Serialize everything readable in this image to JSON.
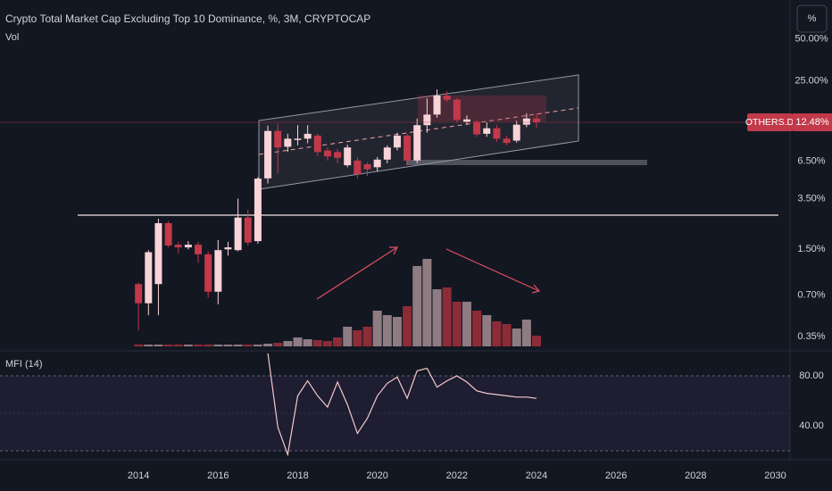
{
  "chart_data": [
    {
      "type": "candlestick",
      "title": "Crypto Total Market Cap Excluding Top 10 Dominance, %, 3M, CRYPTOCAP",
      "subtitle": "Vol",
      "unit_button": "%",
      "x": [
        2014,
        2014.25,
        2014.5,
        2014.75,
        2015,
        2015.25,
        2015.5,
        2015.75,
        2016,
        2016.25,
        2016.5,
        2016.75,
        2017,
        2017.25,
        2017.5,
        2017.75,
        2018,
        2018.25,
        2018.5,
        2018.75,
        2019,
        2019.25,
        2019.5,
        2019.75,
        2020,
        2020.25,
        2020.5,
        2020.75,
        2021,
        2021.25,
        2021.5,
        2021.75,
        2022,
        2022.25,
        2022.5,
        2022.75,
        2023,
        2023.25,
        2023.5,
        2023.75,
        2024
      ],
      "open": [
        0.84,
        0.61,
        0.84,
        2.32,
        1.62,
        1.55,
        1.62,
        1.38,
        0.74,
        1.5,
        1.48,
        2.55,
        1.72,
        4.9,
        10.8,
        8.3,
        9.3,
        9.5,
        10.0,
        7.8,
        7.6,
        6.1,
        6.6,
        6.2,
        5.9,
        6.7,
        8.2,
        10.0,
        6.6,
        11.9,
        14.2,
        19.5,
        18.2,
        12.6,
        12.6,
        10.3,
        11.3,
        9.5,
        9.2,
        12.0,
        13.3
      ],
      "high": [
        0.86,
        1.48,
        2.5,
        2.4,
        1.7,
        1.72,
        1.7,
        1.45,
        1.75,
        1.7,
        3.5,
        2.9,
        5.0,
        11.8,
        12.2,
        10.3,
        11.9,
        11.9,
        10.3,
        8.2,
        8.0,
        8.6,
        7.0,
        6.4,
        7.0,
        8.5,
        10.5,
        10.3,
        13.3,
        18.6,
        21.6,
        21.0,
        18.6,
        14.0,
        13.0,
        12.5,
        11.9,
        10.0,
        12.8,
        14.5,
        14.3
      ],
      "low": [
        0.39,
        0.5,
        0.5,
        1.55,
        1.4,
        1.5,
        1.2,
        0.67,
        0.6,
        1.35,
        1.45,
        1.6,
        1.65,
        4.5,
        5.3,
        7.6,
        8.5,
        8.8,
        7.1,
        6.6,
        6.3,
        5.9,
        4.9,
        5.1,
        5.5,
        6.3,
        7.8,
        6.1,
        6.3,
        10.5,
        13.5,
        17.5,
        12.5,
        12.0,
        9.8,
        9.8,
        9.0,
        8.5,
        8.9,
        11.5,
        11.3
      ],
      "close": [
        0.61,
        1.43,
        2.32,
        1.6,
        1.55,
        1.62,
        1.38,
        0.74,
        1.48,
        1.55,
        2.55,
        1.68,
        4.88,
        10.8,
        8.2,
        9.5,
        9.5,
        10.3,
        7.6,
        7.07,
        6.9,
        8.2,
        5.25,
        5.7,
        6.7,
        8.2,
        10.0,
        6.6,
        11.9,
        14.2,
        19.5,
        18.2,
        13.0,
        13.1,
        10.2,
        11.3,
        9.5,
        8.85,
        12.0,
        13.3,
        12.48
      ],
      "volume": [
        2,
        2,
        2,
        2,
        2,
        2,
        2,
        2,
        2,
        2,
        2,
        2,
        2,
        3,
        4,
        6,
        10,
        8,
        7,
        6,
        10,
        22,
        18,
        22,
        40,
        35,
        33,
        45,
        90,
        98,
        64,
        66,
        50,
        50,
        40,
        35,
        28,
        25,
        20,
        30,
        12
      ],
      "up_color": "#f8d3d7",
      "down_color": "#c2394a",
      "volume_up_color": "#8e7c82",
      "volume_down_color": "#8c2c37",
      "log": true,
      "ylim": [
        0.28,
        96
      ],
      "yticks": [
        {
          "value": 0.35,
          "label": "0.35%"
        },
        {
          "value": 0.7,
          "label": "0.70%"
        },
        {
          "value": 1.5,
          "label": "1.50%"
        },
        {
          "value": 3.5,
          "label": "3.50%"
        },
        {
          "value": 6.5,
          "label": "6.50%"
        },
        {
          "value": 25,
          "label": "25.00%"
        },
        {
          "value": 50,
          "label": "50.00%"
        }
      ],
      "xlim": [
        2010.52,
        2030.37
      ],
      "price_tag": {
        "symbol": "OTHERS.D",
        "value": 12.48,
        "label": "12.48%"
      }
    },
    {
      "type": "line",
      "title": "MFI (14)",
      "x": [
        2017.25,
        2017.5,
        2017.75,
        2018,
        2018.25,
        2018.5,
        2018.75,
        2019,
        2019.25,
        2019.5,
        2019.75,
        2020,
        2020.25,
        2020.5,
        2020.75,
        2021,
        2021.25,
        2021.5,
        2021.75,
        2022,
        2022.25,
        2022.5,
        2022.75,
        2023,
        2023.25,
        2023.5,
        2023.75,
        2024
      ],
      "values": [
        98,
        39,
        17,
        64,
        76,
        64,
        55,
        75,
        57,
        34,
        46,
        64,
        74,
        79,
        62,
        84,
        86,
        71,
        76,
        80,
        75,
        68,
        66,
        65,
        64,
        63,
        63,
        62
      ],
      "color": "#f6c9cc",
      "band": [
        20,
        80
      ],
      "midline": 50,
      "ylim": [
        15,
        100
      ],
      "yticks": [
        {
          "value": 80,
          "label": "80.00"
        },
        {
          "value": 40,
          "label": "40.00"
        }
      ],
      "xlim": [
        2010.52,
        2030.37
      ],
      "xticks": [
        2014,
        2016,
        2018,
        2020,
        2022,
        2024,
        2026,
        2028,
        2030
      ]
    }
  ]
}
